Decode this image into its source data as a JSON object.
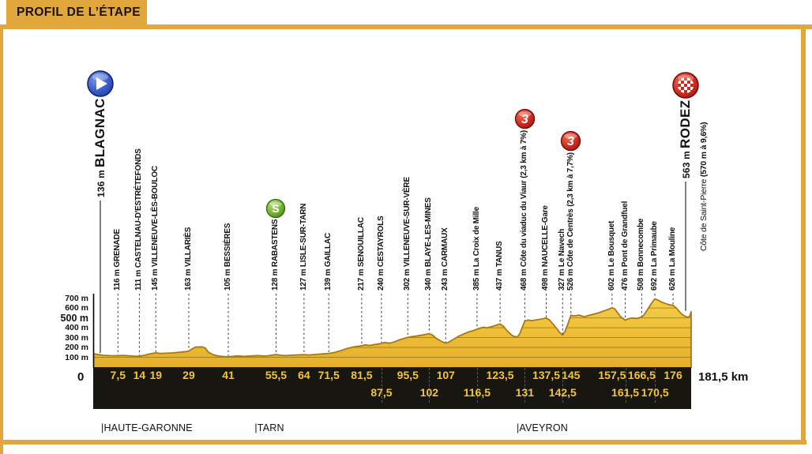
{
  "header": {
    "title": "PROFIL DE L’ÉTAPE"
  },
  "colors": {
    "gold": "#E2A73C",
    "profile_top": "#F6CE45",
    "profile_bottom": "#E5AE2B",
    "profile_stroke": "#A87818",
    "strip_bg": "#181611",
    "strip_text": "#F4C436",
    "grid_line": "#6B5A10",
    "dash_line": "#3A3A3A",
    "climb_red": "#C8281E",
    "sprint_green": "#6FAE2B",
    "start_blue": "#2B4BB5"
  },
  "chart_data": {
    "type": "area",
    "title": "Profil de l'étape Blagnac - Rodez",
    "x_unit": "km",
    "x_range": [
      0,
      181.5
    ],
    "y_range_m": [
      0,
      700
    ],
    "grid": true,
    "origin_label": "0",
    "total_label": "181,5 km",
    "elevation_ticks": [
      {
        "m": 700,
        "label": "700 m",
        "emph": false
      },
      {
        "m": 600,
        "label": "600 m",
        "emph": false
      },
      {
        "m": 500,
        "label": "500 m",
        "emph": true
      },
      {
        "m": 400,
        "label": "400 m",
        "emph": false
      },
      {
        "m": 300,
        "label": "300 m",
        "emph": false
      },
      {
        "m": 200,
        "label": "200 m",
        "emph": false
      },
      {
        "m": 100,
        "label": "100 m",
        "emph": false
      }
    ],
    "towns": [
      {
        "km": 0,
        "elev": 136,
        "elev_label": "136 m",
        "name": "BLAGNAC",
        "major": true,
        "line": "solid",
        "icon": "start"
      },
      {
        "km": 7.5,
        "elev": 116,
        "elev_label": "116 m",
        "name": "GRENADE",
        "line": "dashed"
      },
      {
        "km": 14,
        "elev": 111,
        "elev_label": "111 m",
        "name": "CASTELNAU-D'ESTRÉTEFONDS",
        "line": "dashed"
      },
      {
        "km": 19,
        "elev": 145,
        "elev_label": "145 m",
        "name": "VILLENEUVE-LÈS-BOULOC",
        "line": "dashed"
      },
      {
        "km": 29,
        "elev": 163,
        "elev_label": "163 m",
        "name": "VILLARIÈS",
        "line": "dashed"
      },
      {
        "km": 41,
        "elev": 105,
        "elev_label": "105 m",
        "name": "BESSIÈRES",
        "line": "dashed"
      },
      {
        "km": 55.5,
        "elev": 128,
        "elev_label": "128 m",
        "name": "RABASTENS",
        "line": "dashed",
        "icon": "sprint",
        "badge": "S"
      },
      {
        "km": 64,
        "elev": 127,
        "elev_label": "127 m",
        "name": "LISLE-SUR-TARN",
        "line": "dashed"
      },
      {
        "km": 71.5,
        "elev": 139,
        "elev_label": "139 m",
        "name": "GAILLAC",
        "line": "dashed"
      },
      {
        "km": 81.5,
        "elev": 217,
        "elev_label": "217 m",
        "name": "SENOUILLAC",
        "line": "dashed"
      },
      {
        "km": 87.5,
        "elev": 240,
        "elev_label": "240 m",
        "name": "CESTAYROLS",
        "line": "dashed"
      },
      {
        "km": 95.5,
        "elev": 302,
        "elev_label": "302 m",
        "name": "VILLENEUVE-SUR-VÈRE",
        "line": "dashed"
      },
      {
        "km": 102,
        "elev": 340,
        "elev_label": "340 m",
        "name": "BLAYE-LES-MINES",
        "line": "dashed"
      },
      {
        "km": 107,
        "elev": 243,
        "elev_label": "243 m",
        "name": "CARMAUX",
        "line": "dashed"
      },
      {
        "km": 116.5,
        "elev": 385,
        "elev_label": "385 m",
        "name": "La Croix de Mille",
        "line": "dashed"
      },
      {
        "km": 123.5,
        "elev": 437,
        "elev_label": "437 m",
        "name": "TANUS",
        "line": "dashed"
      },
      {
        "km": 131,
        "elev": 468,
        "elev_label": "468 m",
        "name": "Côte du viaduc du Viaur",
        "bold_suffix": "(2,3 km à 7%)",
        "line": "dashed",
        "icon": "cat3",
        "badge": "3"
      },
      {
        "km": 137.5,
        "elev": 498,
        "elev_label": "498 m",
        "name": "NAUCELLE-Gare",
        "line": "dashed"
      },
      {
        "km": 142.5,
        "elev": 327,
        "elev_label": "327 m",
        "name": "Le Navech",
        "line": "dashed"
      },
      {
        "km": 145,
        "elev": 526,
        "elev_label": "526 m",
        "name": "Côte de Centrès",
        "bold_suffix": "(2,3 km à 7,7%)",
        "line": "dashed",
        "icon": "cat3",
        "badge": "3"
      },
      {
        "km": 157.5,
        "elev": 602,
        "elev_label": "602 m",
        "name": "Le Bousquet",
        "line": "dashed"
      },
      {
        "km": 161.5,
        "elev": 476,
        "elev_label": "476 m",
        "name": "Pont de Grandfuel",
        "line": "dashed"
      },
      {
        "km": 166.5,
        "elev": 508,
        "elev_label": "508 m",
        "name": "Bonnecombe",
        "line": "dashed"
      },
      {
        "km": 170.5,
        "elev": 692,
        "elev_label": "692 m",
        "name": "La Primaube",
        "line": "dashed"
      },
      {
        "km": 176,
        "elev": 626,
        "elev_label": "626 m",
        "name": "La Mouline",
        "line": "dashed"
      },
      {
        "km": 181.5,
        "elev": 563,
        "elev_label": "563 m",
        "name": "RODEZ",
        "major": true,
        "line": "solid",
        "icon": "finish"
      }
    ],
    "finish_note": {
      "prefix": "Côte de Saint-Pierre ",
      "bold": "(570 m à 9,6%)"
    },
    "distance_ticks": [
      {
        "km": 7.5,
        "label": "7,5",
        "row": 1
      },
      {
        "km": 14,
        "label": "14",
        "row": 1
      },
      {
        "km": 19,
        "label": "19",
        "row": 1
      },
      {
        "km": 29,
        "label": "29",
        "row": 1
      },
      {
        "km": 41,
        "label": "41",
        "row": 1
      },
      {
        "km": 55.5,
        "label": "55,5",
        "row": 1
      },
      {
        "km": 64,
        "label": "64",
        "row": 1
      },
      {
        "km": 71.5,
        "label": "71,5",
        "row": 1
      },
      {
        "km": 81.5,
        "label": "81,5",
        "row": 1
      },
      {
        "km": 87.5,
        "label": "87,5",
        "row": 2
      },
      {
        "km": 95.5,
        "label": "95,5",
        "row": 1
      },
      {
        "km": 102,
        "label": "102",
        "row": 2
      },
      {
        "km": 107,
        "label": "107",
        "row": 1
      },
      {
        "km": 116.5,
        "label": "116,5",
        "row": 2
      },
      {
        "km": 123.5,
        "label": "123,5",
        "row": 1
      },
      {
        "km": 131,
        "label": "131",
        "row": 2
      },
      {
        "km": 137.5,
        "label": "137,5",
        "row": 1
      },
      {
        "km": 142.5,
        "label": "142,5",
        "row": 2
      },
      {
        "km": 145,
        "label": "145",
        "row": 1
      },
      {
        "km": 157.5,
        "label": "157,5",
        "row": 1
      },
      {
        "km": 161.5,
        "label": "161,5",
        "row": 2
      },
      {
        "km": 166.5,
        "label": "166,5",
        "row": 1
      },
      {
        "km": 170.5,
        "label": "170,5",
        "row": 2
      },
      {
        "km": 176,
        "label": "176",
        "row": 1
      }
    ],
    "departments": [
      {
        "km": 2.4,
        "label": "|HAUTE-GARONNE"
      },
      {
        "km": 49,
        "label": "|TARN"
      },
      {
        "km": 128.5,
        "label": "|AVEYRON"
      }
    ],
    "profile": [
      [
        0,
        136
      ],
      [
        1.5,
        128
      ],
      [
        3,
        120
      ],
      [
        5,
        117
      ],
      [
        7.5,
        116
      ],
      [
        9,
        119
      ],
      [
        11,
        115
      ],
      [
        12.5,
        112
      ],
      [
        14,
        111
      ],
      [
        15.5,
        120
      ],
      [
        17,
        133
      ],
      [
        19,
        145
      ],
      [
        20.5,
        139
      ],
      [
        22,
        141
      ],
      [
        24,
        144
      ],
      [
        26,
        150
      ],
      [
        28,
        158
      ],
      [
        29,
        163
      ],
      [
        30,
        185
      ],
      [
        31,
        203
      ],
      [
        33,
        207
      ],
      [
        34,
        195
      ],
      [
        35,
        150
      ],
      [
        36.5,
        125
      ],
      [
        38,
        113
      ],
      [
        39.5,
        108
      ],
      [
        41,
        105
      ],
      [
        42.5,
        110
      ],
      [
        44,
        114
      ],
      [
        46,
        109
      ],
      [
        48,
        114
      ],
      [
        50,
        118
      ],
      [
        52,
        112
      ],
      [
        54,
        120
      ],
      [
        55.5,
        128
      ],
      [
        57,
        120
      ],
      [
        58.5,
        117
      ],
      [
        60,
        121
      ],
      [
        62,
        124
      ],
      [
        64,
        127
      ],
      [
        65.5,
        123
      ],
      [
        67,
        128
      ],
      [
        69,
        133
      ],
      [
        71.5,
        139
      ],
      [
        73,
        147
      ],
      [
        75,
        165
      ],
      [
        77,
        188
      ],
      [
        79,
        205
      ],
      [
        81.5,
        217
      ],
      [
        82.5,
        226
      ],
      [
        84,
        220
      ],
      [
        85.5,
        230
      ],
      [
        87.5,
        240
      ],
      [
        88.5,
        250
      ],
      [
        90,
        243
      ],
      [
        91.5,
        258
      ],
      [
        93,
        278
      ],
      [
        94.5,
        292
      ],
      [
        95.5,
        302
      ],
      [
        96.5,
        308
      ],
      [
        98,
        315
      ],
      [
        100,
        326
      ],
      [
        102,
        340
      ],
      [
        103,
        325
      ],
      [
        104,
        295
      ],
      [
        105.5,
        265
      ],
      [
        107,
        243
      ],
      [
        108,
        255
      ],
      [
        109.5,
        285
      ],
      [
        111,
        315
      ],
      [
        112.5,
        338
      ],
      [
        114,
        358
      ],
      [
        115.5,
        372
      ],
      [
        116.5,
        385
      ],
      [
        117.5,
        396
      ],
      [
        118.5,
        405
      ],
      [
        119.5,
        398
      ],
      [
        121,
        412
      ],
      [
        122.5,
        428
      ],
      [
        123.5,
        437
      ],
      [
        124.5,
        415
      ],
      [
        125.5,
        375
      ],
      [
        126.5,
        340
      ],
      [
        127.5,
        315
      ],
      [
        128.7,
        305
      ],
      [
        129.5,
        340
      ],
      [
        130.3,
        410
      ],
      [
        131,
        468
      ],
      [
        132,
        478
      ],
      [
        133,
        470
      ],
      [
        134.5,
        480
      ],
      [
        136,
        488
      ],
      [
        137.5,
        498
      ],
      [
        138.5,
        478
      ],
      [
        139.5,
        440
      ],
      [
        140.5,
        400
      ],
      [
        141.5,
        355
      ],
      [
        142.5,
        327
      ],
      [
        143.3,
        370
      ],
      [
        144.1,
        440
      ],
      [
        145,
        526
      ],
      [
        146,
        520
      ],
      [
        147.5,
        528
      ],
      [
        149,
        512
      ],
      [
        150.5,
        525
      ],
      [
        152,
        538
      ],
      [
        153.5,
        552
      ],
      [
        155,
        570
      ],
      [
        156.5,
        588
      ],
      [
        157.5,
        602
      ],
      [
        158.3,
        592
      ],
      [
        159,
        560
      ],
      [
        160,
        515
      ],
      [
        161.5,
        476
      ],
      [
        162.5,
        492
      ],
      [
        163.5,
        498
      ],
      [
        165,
        494
      ],
      [
        166.5,
        508
      ],
      [
        167.3,
        535
      ],
      [
        168,
        570
      ],
      [
        169,
        625
      ],
      [
        170,
        672
      ],
      [
        170.5,
        692
      ],
      [
        171.3,
        682
      ],
      [
        172.5,
        660
      ],
      [
        174,
        642
      ],
      [
        175,
        632
      ],
      [
        176,
        626
      ],
      [
        177,
        600
      ],
      [
        178,
        560
      ],
      [
        179,
        528
      ],
      [
        180,
        510
      ],
      [
        180.7,
        506
      ],
      [
        181.1,
        520
      ],
      [
        181.5,
        563
      ]
    ]
  }
}
